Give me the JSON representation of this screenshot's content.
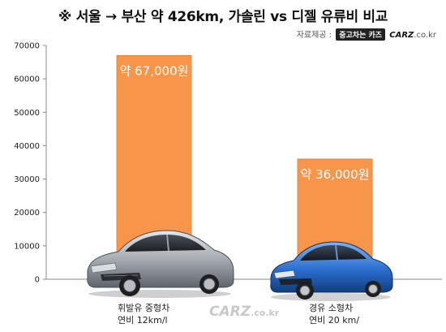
{
  "title": "※ 서울 → 부산 약 426km, 가솔린 vs 디젤 유류비 비교",
  "source": {
    "label": "자료제공 :",
    "partner": "중고차는 카즈",
    "brand": "CARZ",
    "domain": ".co.kr"
  },
  "watermark": {
    "brand": "CARZ",
    "domain": ".co.kr"
  },
  "colors": {
    "bar": "#f7964a",
    "bar_edge": "#e07e33",
    "axis": "#8a8a8a",
    "grid": "#d9d9d9"
  },
  "chart_data": {
    "type": "bar",
    "title": "※ 서울 → 부산 약 426km, 가솔린 vs 디젤 유류비 비교",
    "xlabel": "",
    "ylabel": "",
    "ylim": [
      0,
      70000
    ],
    "yticks": [
      "0",
      "10000",
      "20000",
      "30000",
      "40000",
      "50000",
      "60000",
      "70000"
    ],
    "grid": false,
    "categories": [
      {
        "line1": "휘발유 중형차",
        "line2": "연비 12km/l"
      },
      {
        "line1": "경유 소형차",
        "line2": "연비 20 km/"
      }
    ],
    "values": [
      67000,
      36000
    ],
    "data_labels": [
      "약 67,000원",
      "약 36,000원"
    ]
  }
}
